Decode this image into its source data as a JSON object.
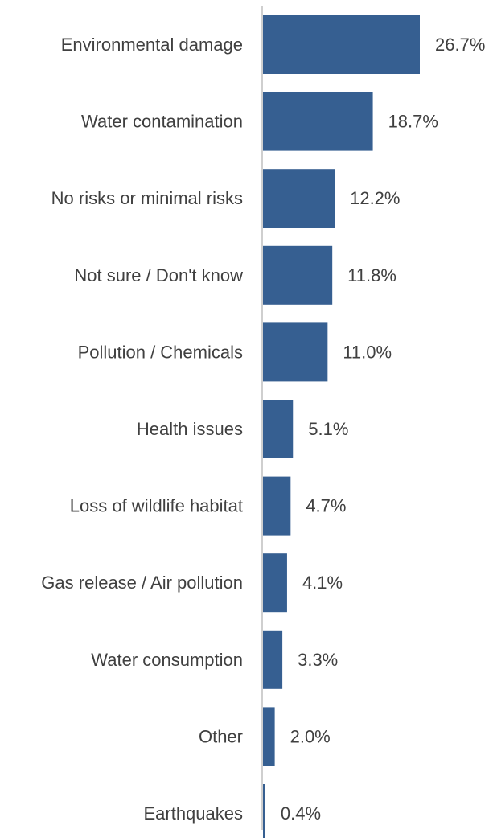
{
  "chart_data": {
    "type": "bar",
    "orientation": "horizontal",
    "categories": [
      "Environmental damage",
      "Water contamination",
      "No risks or minimal risks",
      "Not sure / Don't know",
      "Pollution / Chemicals",
      "Health issues",
      "Loss of wildlife habitat",
      "Gas release / Air pollution",
      "Water consumption",
      "Other",
      "Earthquakes"
    ],
    "values": [
      26.7,
      18.7,
      12.2,
      11.8,
      11.0,
      5.1,
      4.7,
      4.1,
      3.3,
      2.0,
      0.4
    ],
    "value_labels": [
      "26.7%",
      "18.7%",
      "12.2%",
      "11.8%",
      "11.0%",
      "5.1%",
      "4.7%",
      "4.1%",
      "3.3%",
      "2.0%",
      "0.4%"
    ],
    "bar_color": "#365f91",
    "axis_color": "#bfbfbf",
    "text_color": "#404040",
    "xlim": [
      0,
      26.7
    ],
    "grid": false,
    "legend": "none"
  }
}
